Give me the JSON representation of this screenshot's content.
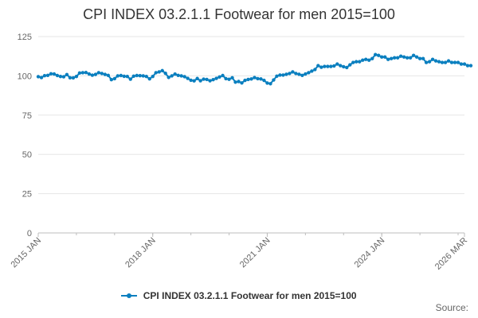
{
  "colors": {
    "series": "#0a7fbf",
    "grid": "#e6e6e6",
    "axis": "#bdbdbd",
    "text": "#666666"
  },
  "source_label": "Source:",
  "chart_data": {
    "type": "line",
    "title": "CPI INDEX 03.2.1.1 Footwear for men 2015=100",
    "xlabel": "",
    "ylabel": "",
    "ylim": [
      0,
      125
    ],
    "yticks": [
      0,
      25,
      50,
      75,
      100,
      125
    ],
    "ytick_labels": [
      "0",
      "25",
      "50",
      "75",
      "100",
      "125"
    ],
    "x_start": "2015-01",
    "x_end": "2026-03",
    "xticks": [
      "2015-01",
      "2018-01",
      "2021-01",
      "2024-01",
      "2026-03"
    ],
    "xtick_labels": [
      "2015 JAN",
      "2018 JAN",
      "2021 JAN",
      "2024 JAN",
      "2026 MAR"
    ],
    "grid": true,
    "legend_position": "bottom",
    "series": [
      {
        "name": "CPI INDEX 03.2.1.1 Footwear for men 2015=100",
        "values": [
          99.5,
          98.9,
          100.1,
          100.3,
          101.3,
          101.2,
          100.2,
          99.6,
          99.4,
          100.8,
          98.8,
          98.7,
          99.6,
          101.8,
          102.0,
          102.1,
          101.2,
          100.4,
          100.9,
          102.0,
          101.5,
          100.9,
          100.3,
          97.6,
          98.2,
          100.0,
          100.2,
          99.7,
          99.6,
          97.9,
          99.8,
          100.2,
          100.1,
          100.0,
          99.6,
          98.1,
          99.6,
          102.0,
          102.5,
          103.3,
          101.6,
          99.0,
          100.0,
          101.1,
          100.3,
          100.0,
          99.5,
          98.4,
          97.2,
          96.8,
          98.3,
          96.9,
          97.9,
          97.7,
          96.9,
          97.6,
          98.4,
          99.3,
          100.2,
          98.2,
          97.8,
          98.8,
          96.0,
          96.4,
          95.5,
          97.1,
          97.7,
          98.0,
          98.9,
          98.2,
          98.0,
          97.1,
          95.4,
          95.0,
          97.4,
          99.8,
          100.5,
          100.5,
          101.0,
          101.5,
          102.5,
          101.5,
          101.0,
          100.3,
          101.2,
          102.0,
          103.0,
          104.0,
          106.5,
          105.5,
          106.0,
          106.0,
          106.0,
          106.3,
          107.5,
          106.5,
          105.8,
          105.3,
          107.0,
          108.5,
          109.0,
          109.0,
          110.0,
          110.5,
          110.0,
          111.0,
          113.5,
          113.0,
          112.0,
          112.0,
          110.5,
          111.0,
          111.5,
          111.5,
          112.5,
          112.0,
          111.5,
          111.5,
          113.0,
          112.0,
          111.0,
          111.0,
          108.5,
          109.0,
          110.5,
          109.5,
          109.0,
          108.5,
          108.5,
          109.5,
          108.5,
          108.5,
          108.5,
          107.5,
          107.5,
          106.5,
          106.5
        ]
      }
    ]
  }
}
